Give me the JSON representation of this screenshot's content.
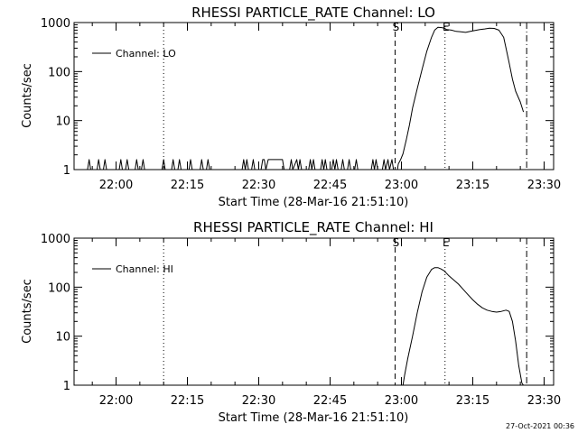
{
  "footer_timestamp": "27-Oct-2021 00:36",
  "chart_data": [
    {
      "type": "line",
      "title": "RHESSI PARTICLE_RATE Channel: LO",
      "xlabel": "Start Time (28-Mar-16 21:51:10)",
      "ylabel": "Counts/sec",
      "y_scale": "log",
      "ylim": [
        1,
        1000
      ],
      "xlim": [
        "21:51:10",
        "23:32:00"
      ],
      "x_ticks": [
        "22:00",
        "22:15",
        "22:30",
        "22:45",
        "23:00",
        "23:15",
        "23:30"
      ],
      "y_ticks": [
        "1",
        "10",
        "100",
        "1000"
      ],
      "legend": {
        "label": "Channel: LO",
        "placement": "top-left"
      },
      "markers": [
        {
          "label": "S",
          "time": "22:58:40",
          "style": "dashed"
        },
        {
          "label": "E",
          "time": "23:09:10",
          "style": "dotted"
        },
        {
          "label": "",
          "time": "22:10:00",
          "style": "dotted"
        },
        {
          "label": "",
          "time": "23:26:20",
          "style": "dashdot"
        }
      ],
      "series": [
        {
          "name": "Channel: LO",
          "points": [
            [
              "21:51:10",
              1
            ],
            [
              "21:54:00",
              1
            ],
            [
              "21:54:20",
              1.6
            ],
            [
              "21:54:40",
              1
            ],
            [
              "21:56:00",
              1
            ],
            [
              "21:56:20",
              1.6
            ],
            [
              "21:56:40",
              1
            ],
            [
              "21:57:20",
              1
            ],
            [
              "21:57:40",
              1.6
            ],
            [
              "21:58:00",
              1
            ],
            [
              "22:00:40",
              1
            ],
            [
              "22:01:00",
              1.6
            ],
            [
              "22:01:20",
              1
            ],
            [
              "22:02:00",
              1
            ],
            [
              "22:02:20",
              1.6
            ],
            [
              "22:02:40",
              1
            ],
            [
              "22:04:00",
              1
            ],
            [
              "22:04:20",
              1.6
            ],
            [
              "22:04:40",
              1
            ],
            [
              "22:05:20",
              1
            ],
            [
              "22:05:40",
              1.6
            ],
            [
              "22:06:00",
              1
            ],
            [
              "22:09:40",
              1
            ],
            [
              "22:10:00",
              1.6
            ],
            [
              "22:10:20",
              1
            ],
            [
              "22:11:40",
              1
            ],
            [
              "22:12:00",
              1.6
            ],
            [
              "22:12:20",
              1
            ],
            [
              "22:13:00",
              1
            ],
            [
              "22:13:20",
              1.6
            ],
            [
              "22:13:40",
              1
            ],
            [
              "22:15:20",
              1
            ],
            [
              "22:15:40",
              1.6
            ],
            [
              "22:16:00",
              1
            ],
            [
              "22:17:40",
              1
            ],
            [
              "22:18:00",
              1.6
            ],
            [
              "22:18:20",
              1
            ],
            [
              "22:19:00",
              1
            ],
            [
              "22:19:20",
              1.6
            ],
            [
              "22:19:40",
              1
            ],
            [
              "22:26:30",
              1
            ],
            [
              "22:26:50",
              1.6
            ],
            [
              "22:27:10",
              1
            ],
            [
              "22:27:30",
              1.6
            ],
            [
              "22:27:50",
              1
            ],
            [
              "22:28:30",
              1
            ],
            [
              "22:28:50",
              1.6
            ],
            [
              "22:29:10",
              1
            ],
            [
              "22:30:30",
              1
            ],
            [
              "22:30:50",
              1.6
            ],
            [
              "22:31:10",
              1.6
            ],
            [
              "22:31:30",
              1
            ],
            [
              "22:32:00",
              1.6
            ],
            [
              "22:35:00",
              1.6
            ],
            [
              "22:35:20",
              1
            ],
            [
              "22:36:30",
              1
            ],
            [
              "22:36:50",
              1.6
            ],
            [
              "22:37:10",
              1
            ],
            [
              "22:38:00",
              1.6
            ],
            [
              "22:38:20",
              1
            ],
            [
              "22:38:40",
              1.6
            ],
            [
              "22:39:00",
              1
            ],
            [
              "22:40:30",
              1
            ],
            [
              "22:40:50",
              1.6
            ],
            [
              "22:41:10",
              1
            ],
            [
              "22:41:30",
              1.6
            ],
            [
              "22:41:50",
              1
            ],
            [
              "22:43:00",
              1
            ],
            [
              "22:43:20",
              1.6
            ],
            [
              "22:43:40",
              1
            ],
            [
              "22:44:00",
              1.6
            ],
            [
              "22:44:20",
              1
            ],
            [
              "22:45:20",
              1
            ],
            [
              "22:45:40",
              1.6
            ],
            [
              "22:46:00",
              1
            ],
            [
              "22:46:20",
              1.6
            ],
            [
              "22:46:40",
              1
            ],
            [
              "22:47:20",
              1
            ],
            [
              "22:47:40",
              1.6
            ],
            [
              "22:48:00",
              1
            ],
            [
              "22:48:40",
              1
            ],
            [
              "22:49:00",
              1.6
            ],
            [
              "22:49:20",
              1
            ],
            [
              "22:50:10",
              1
            ],
            [
              "22:50:30",
              1.6
            ],
            [
              "22:50:50",
              1
            ],
            [
              "22:53:40",
              1
            ],
            [
              "22:54:00",
              1.6
            ],
            [
              "22:54:20",
              1
            ],
            [
              "22:54:40",
              1.6
            ],
            [
              "22:55:00",
              1
            ],
            [
              "22:56:00",
              1
            ],
            [
              "22:56:20",
              1.6
            ],
            [
              "22:56:40",
              1
            ],
            [
              "22:57:10",
              1.6
            ],
            [
              "22:57:30",
              1
            ],
            [
              "22:58:00",
              1.6
            ],
            [
              "22:58:20",
              1
            ],
            [
              "22:59:10",
              1
            ],
            [
              "22:59:20",
              1.3
            ],
            [
              "22:59:50",
              1.6
            ],
            [
              "23:00:20",
              2.1
            ],
            [
              "23:01:00",
              4
            ],
            [
              "23:01:40",
              8
            ],
            [
              "23:02:20",
              18
            ],
            [
              "23:03:20",
              45
            ],
            [
              "23:04:20",
              110
            ],
            [
              "23:05:20",
              260
            ],
            [
              "23:06:20",
              500
            ],
            [
              "23:07:00",
              700
            ],
            [
              "23:07:40",
              800
            ],
            [
              "23:08:30",
              790
            ],
            [
              "23:09:00",
              770
            ],
            [
              "23:09:30",
              720
            ],
            [
              "23:10:30",
              700
            ],
            [
              "23:11:30",
              660
            ],
            [
              "23:12:30",
              650
            ],
            [
              "23:13:30",
              630
            ],
            [
              "23:14:30",
              660
            ],
            [
              "23:15:30",
              690
            ],
            [
              "23:16:30",
              720
            ],
            [
              "23:17:30",
              740
            ],
            [
              "23:18:30",
              770
            ],
            [
              "23:19:30",
              760
            ],
            [
              "23:20:30",
              700
            ],
            [
              "23:21:30",
              500
            ],
            [
              "23:22:00",
              300
            ],
            [
              "23:22:40",
              150
            ],
            [
              "23:23:20",
              70
            ],
            [
              "23:24:00",
              40
            ],
            [
              "23:25:00",
              24
            ],
            [
              "23:25:40",
              15
            ]
          ]
        }
      ]
    },
    {
      "type": "line",
      "title": "RHESSI PARTICLE_RATE Channel: HI",
      "xlabel": "Start Time (28-Mar-16 21:51:10)",
      "ylabel": "Counts/sec",
      "y_scale": "log",
      "ylim": [
        1,
        1000
      ],
      "xlim": [
        "21:51:10",
        "23:32:00"
      ],
      "x_ticks": [
        "22:00",
        "22:15",
        "22:30",
        "22:45",
        "23:00",
        "23:15",
        "23:30"
      ],
      "y_ticks": [
        "1",
        "10",
        "100",
        "1000"
      ],
      "legend": {
        "label": "Channel: HI",
        "placement": "top-left"
      },
      "markers": [
        {
          "label": "S",
          "time": "22:58:40",
          "style": "dashed"
        },
        {
          "label": "E",
          "time": "23:09:10",
          "style": "dotted"
        },
        {
          "label": "",
          "time": "22:10:00",
          "style": "dotted"
        },
        {
          "label": "",
          "time": "23:26:20",
          "style": "dashdot"
        }
      ],
      "series": [
        {
          "name": "Channel: HI",
          "points": [
            [
              "22:59:40",
              0.8
            ],
            [
              "23:00:20",
              1
            ],
            [
              "23:00:40",
              1.6
            ],
            [
              "23:01:20",
              3.5
            ],
            [
              "23:02:20",
              10
            ],
            [
              "23:03:20",
              30
            ],
            [
              "23:04:20",
              80
            ],
            [
              "23:05:20",
              160
            ],
            [
              "23:06:20",
              230
            ],
            [
              "23:07:00",
              250
            ],
            [
              "23:07:40",
              250
            ],
            [
              "23:08:20",
              235
            ],
            [
              "23:09:00",
              215
            ],
            [
              "23:10:00",
              170
            ],
            [
              "23:11:00",
              140
            ],
            [
              "23:12:00",
              115
            ],
            [
              "23:13:00",
              90
            ],
            [
              "23:14:00",
              70
            ],
            [
              "23:15:00",
              55
            ],
            [
              "23:16:00",
              45
            ],
            [
              "23:17:00",
              38
            ],
            [
              "23:18:00",
              34
            ],
            [
              "23:19:00",
              32
            ],
            [
              "23:20:00",
              31
            ],
            [
              "23:21:00",
              32
            ],
            [
              "23:22:00",
              34
            ],
            [
              "23:22:40",
              32
            ],
            [
              "23:23:20",
              20
            ],
            [
              "23:24:00",
              8
            ],
            [
              "23:24:40",
              2.5
            ],
            [
              "23:25:20",
              1.1
            ],
            [
              "23:25:40",
              0.8
            ]
          ]
        }
      ]
    }
  ]
}
